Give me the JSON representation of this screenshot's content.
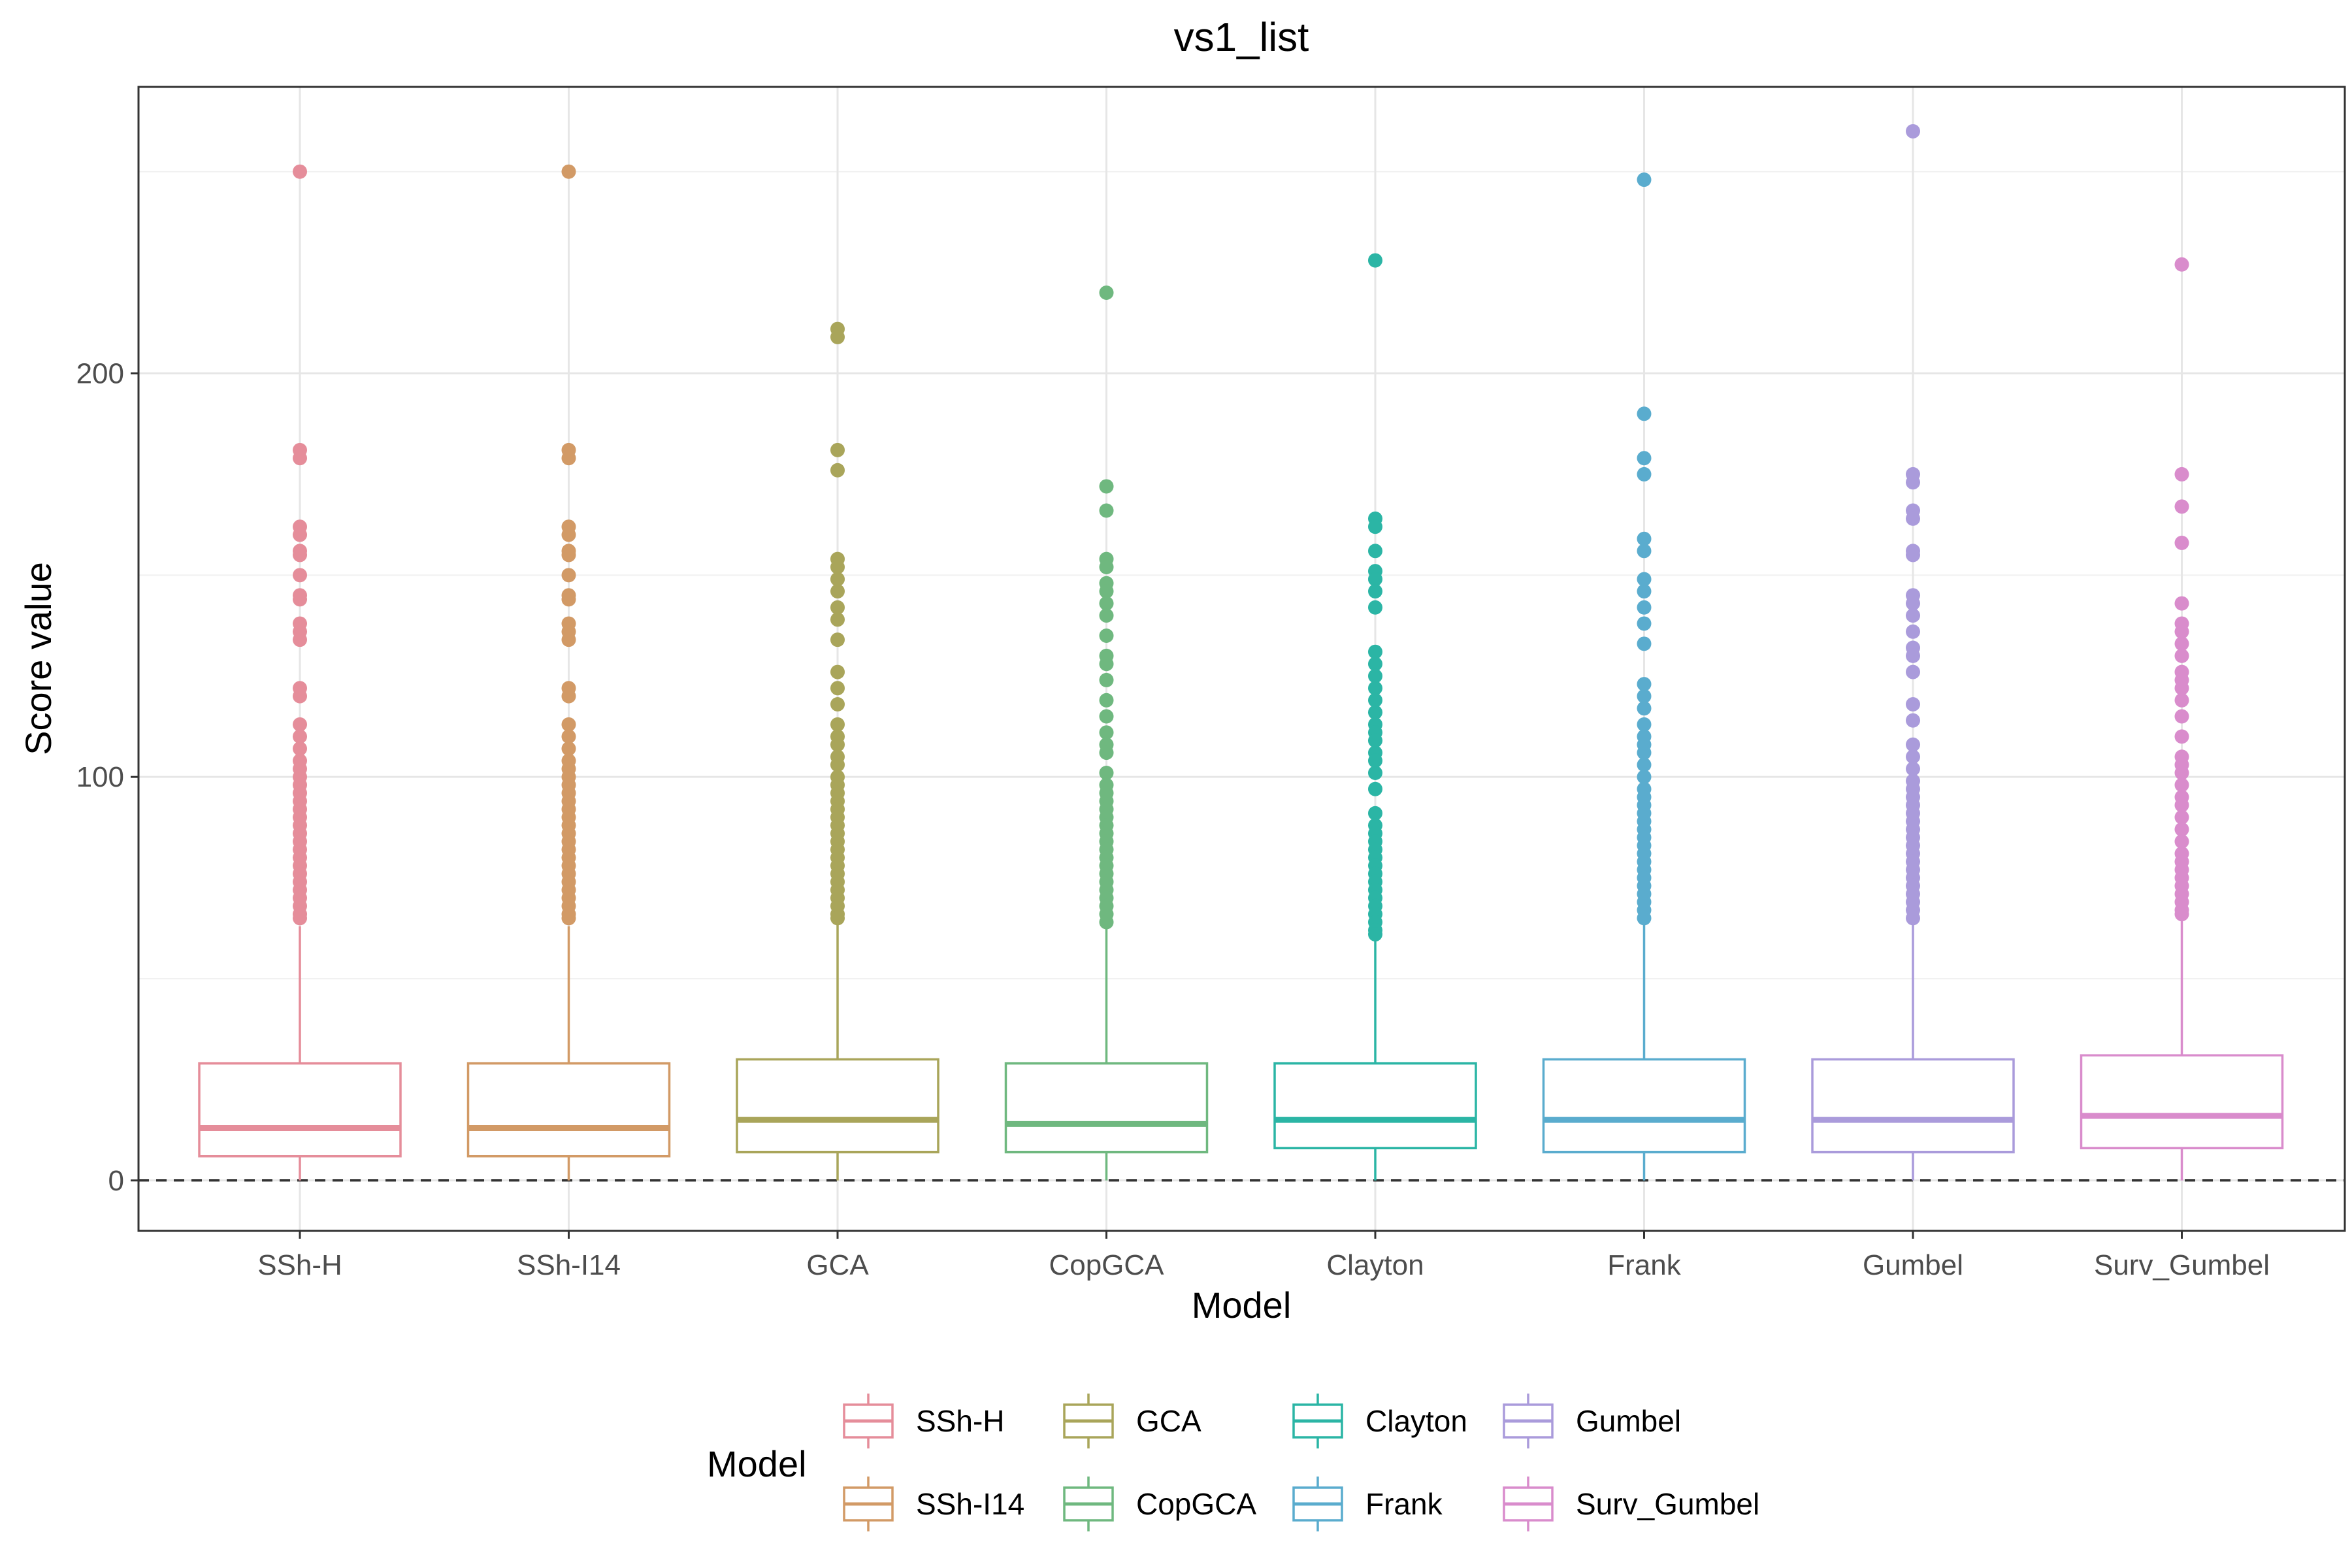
{
  "chart_data": {
    "type": "box",
    "title": "vs1_list",
    "xlabel": "Model",
    "ylabel": "Score value",
    "ylim": [
      -12.5,
      271
    ],
    "y_ticks": [
      0,
      100,
      200
    ],
    "grid": true,
    "reference_line": {
      "y": 0,
      "style": "dashed"
    },
    "legend": {
      "title": "Model",
      "position": "bottom"
    },
    "categories": [
      "SSh-H",
      "SSh-I14",
      "GCA",
      "CopGCA",
      "Clayton",
      "Frank",
      "Gumbel",
      "Surv_Gumbel"
    ],
    "series": [
      {
        "name": "SSh-H",
        "color": "#E58D9A",
        "whisker_low": 0,
        "q1": 6,
        "median": 13,
        "q3": 29,
        "whisker_high": 63,
        "outliers": [
          250,
          181,
          179,
          162,
          160,
          156,
          155,
          150,
          145,
          144,
          138,
          136,
          134,
          122,
          120,
          113,
          110,
          107,
          104,
          102,
          100,
          98,
          96,
          94,
          92,
          90,
          88,
          86,
          84,
          82,
          80,
          78,
          76,
          74,
          72,
          70,
          68,
          66,
          65
        ]
      },
      {
        "name": "SSh-I14",
        "color": "#D29A66",
        "whisker_low": 0,
        "q1": 6,
        "median": 13,
        "q3": 29,
        "whisker_high": 63,
        "outliers": [
          250,
          181,
          179,
          162,
          160,
          156,
          155,
          150,
          145,
          144,
          138,
          136,
          134,
          122,
          120,
          113,
          110,
          107,
          104,
          102,
          100,
          98,
          96,
          94,
          92,
          90,
          88,
          86,
          84,
          82,
          80,
          78,
          76,
          74,
          72,
          70,
          68,
          66,
          65
        ]
      },
      {
        "name": "GCA",
        "color": "#A9A55A",
        "whisker_low": 0,
        "q1": 7,
        "median": 15,
        "q3": 30,
        "whisker_high": 64,
        "outliers": [
          211,
          209,
          181,
          176,
          154,
          152,
          149,
          146,
          142,
          139,
          134,
          126,
          122,
          118,
          113,
          110,
          108,
          105,
          103,
          100,
          98,
          96,
          94,
          92,
          90,
          88,
          86,
          84,
          82,
          80,
          78,
          76,
          74,
          72,
          70,
          68,
          66,
          65
        ]
      },
      {
        "name": "CopGCA",
        "color": "#6FB87F",
        "whisker_low": 0,
        "q1": 7,
        "median": 14,
        "q3": 29,
        "whisker_high": 63,
        "outliers": [
          220,
          172,
          166,
          154,
          152,
          148,
          146,
          143,
          140,
          135,
          130,
          128,
          124,
          119,
          115,
          111,
          108,
          106,
          101,
          98,
          96,
          94,
          92,
          90,
          88,
          86,
          84,
          82,
          80,
          78,
          76,
          74,
          72,
          70,
          68,
          66,
          64
        ]
      },
      {
        "name": "Clayton",
        "color": "#2BB5A5",
        "whisker_low": 0,
        "q1": 8,
        "median": 15,
        "q3": 29,
        "whisker_high": 60,
        "outliers": [
          228,
          164,
          162,
          156,
          151,
          149,
          146,
          142,
          131,
          128,
          125,
          122,
          119,
          116,
          113,
          111,
          109,
          106,
          104,
          101,
          97,
          91,
          88,
          86,
          84,
          82,
          80,
          78,
          76,
          74,
          72,
          70,
          68,
          66,
          64,
          62,
          61
        ]
      },
      {
        "name": "Frank",
        "color": "#5AACCE",
        "whisker_low": 0,
        "q1": 7,
        "median": 15,
        "q3": 30,
        "whisker_high": 64,
        "outliers": [
          248,
          190,
          179,
          175,
          159,
          156,
          149,
          146,
          142,
          138,
          133,
          123,
          120,
          117,
          113,
          110,
          108,
          106,
          103,
          100,
          97,
          95,
          93,
          91,
          89,
          87,
          85,
          83,
          81,
          79,
          77,
          75,
          73,
          71,
          69,
          67,
          65
        ]
      },
      {
        "name": "Gumbel",
        "color": "#AA9BDB",
        "whisker_low": 0,
        "q1": 7,
        "median": 15,
        "q3": 30,
        "whisker_high": 64,
        "outliers": [
          260,
          175,
          173,
          166,
          164,
          156,
          155,
          145,
          143,
          140,
          136,
          132,
          130,
          126,
          118,
          114,
          108,
          105,
          102,
          99,
          97,
          95,
          93,
          91,
          89,
          87,
          85,
          83,
          81,
          79,
          77,
          75,
          73,
          71,
          69,
          67,
          65
        ]
      },
      {
        "name": "Surv_Gumbel",
        "color": "#D98CCC",
        "whisker_low": 0,
        "q1": 8,
        "median": 16,
        "q3": 31,
        "whisker_high": 66,
        "outliers": [
          227,
          175,
          167,
          158,
          143,
          138,
          136,
          133,
          130,
          126,
          124,
          122,
          119,
          115,
          110,
          105,
          103,
          101,
          98,
          95,
          93,
          90,
          87,
          84,
          81,
          79,
          77,
          75,
          73,
          71,
          69,
          67,
          66
        ]
      }
    ]
  }
}
